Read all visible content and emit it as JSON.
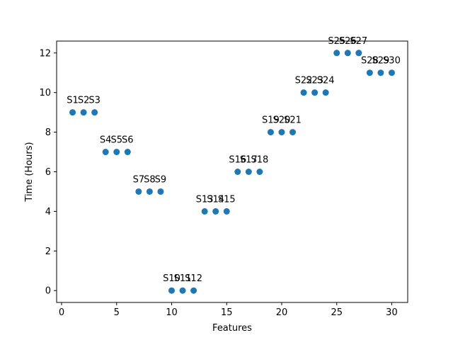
{
  "chart_data": {
    "type": "scatter",
    "title": "",
    "xlabel": "Features",
    "ylabel": "Time (Hours)",
    "xlim": [
      -0.45,
      31.45
    ],
    "ylim": [
      -0.6,
      12.6
    ],
    "xticks": [
      0,
      5,
      10,
      15,
      20,
      25,
      30
    ],
    "yticks": [
      0,
      2,
      4,
      6,
      8,
      10,
      12
    ],
    "grid": false,
    "marker_color": "#1f77b4",
    "points": [
      {
        "x": 1,
        "y": 9,
        "label": "S1"
      },
      {
        "x": 2,
        "y": 9,
        "label": "S2"
      },
      {
        "x": 3,
        "y": 9,
        "label": "S3"
      },
      {
        "x": 4,
        "y": 7,
        "label": "S4"
      },
      {
        "x": 5,
        "y": 7,
        "label": "S5"
      },
      {
        "x": 6,
        "y": 7,
        "label": "S6"
      },
      {
        "x": 7,
        "y": 5,
        "label": "S7"
      },
      {
        "x": 8,
        "y": 5,
        "label": "S8"
      },
      {
        "x": 9,
        "y": 5,
        "label": "S9"
      },
      {
        "x": 10,
        "y": 0,
        "label": "S10"
      },
      {
        "x": 11,
        "y": 0,
        "label": "S11"
      },
      {
        "x": 12,
        "y": 0,
        "label": "S12"
      },
      {
        "x": 13,
        "y": 4,
        "label": "S13"
      },
      {
        "x": 14,
        "y": 4,
        "label": "S14"
      },
      {
        "x": 15,
        "y": 4,
        "label": "S15"
      },
      {
        "x": 16,
        "y": 6,
        "label": "S16"
      },
      {
        "x": 17,
        "y": 6,
        "label": "S17"
      },
      {
        "x": 18,
        "y": 6,
        "label": "S18"
      },
      {
        "x": 19,
        "y": 8,
        "label": "S19"
      },
      {
        "x": 20,
        "y": 8,
        "label": "S20"
      },
      {
        "x": 21,
        "y": 8,
        "label": "S21"
      },
      {
        "x": 22,
        "y": 10,
        "label": "S22"
      },
      {
        "x": 23,
        "y": 10,
        "label": "S23"
      },
      {
        "x": 24,
        "y": 10,
        "label": "S24"
      },
      {
        "x": 25,
        "y": 12,
        "label": "S25"
      },
      {
        "x": 26,
        "y": 12,
        "label": "S26"
      },
      {
        "x": 27,
        "y": 12,
        "label": "S27"
      },
      {
        "x": 28,
        "y": 11,
        "label": "S28"
      },
      {
        "x": 29,
        "y": 11,
        "label": "S29"
      },
      {
        "x": 30,
        "y": 11,
        "label": "S30"
      }
    ]
  }
}
